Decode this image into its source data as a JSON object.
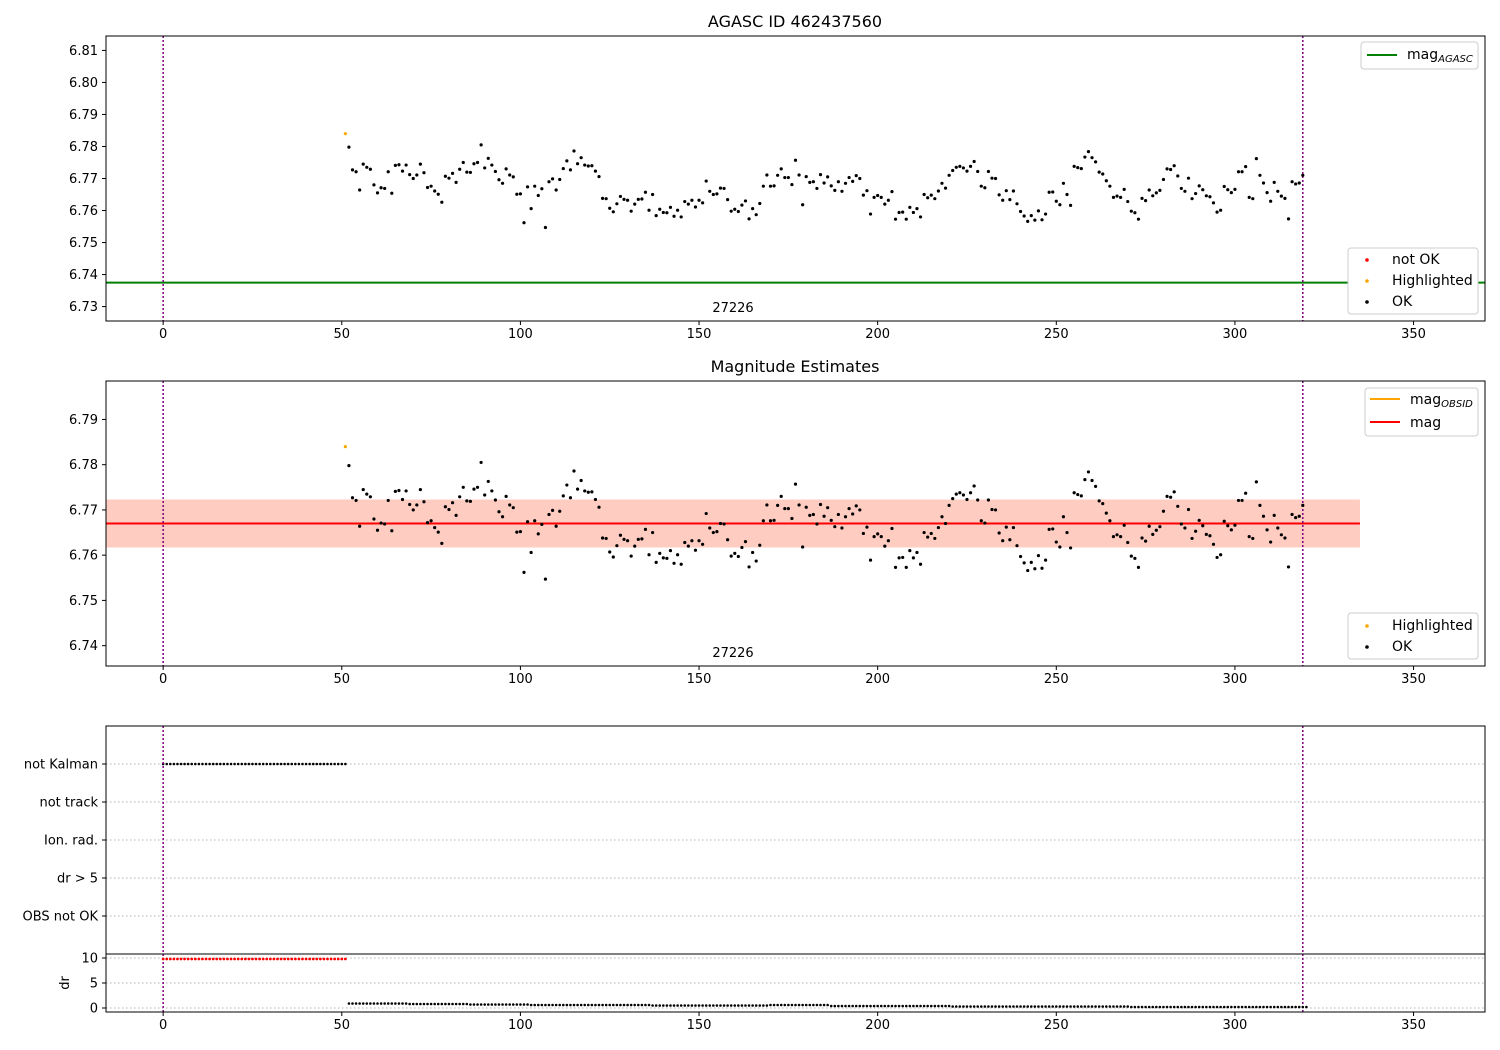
{
  "page": {
    "background": "#ffffff"
  },
  "chart_data": [
    {
      "type": "scatter",
      "title": "AGASC ID 462437560",
      "xlabel": "",
      "ylabel": "",
      "xlim": [
        -16,
        370
      ],
      "ylim": [
        6.7255,
        6.8145
      ],
      "x_ticks": [
        0,
        50,
        100,
        150,
        200,
        250,
        300,
        350
      ],
      "y_ticks": [
        6.73,
        6.74,
        6.75,
        6.76,
        6.77,
        6.78,
        6.79,
        6.8,
        6.81
      ],
      "vlines": [
        0,
        319
      ],
      "vline_color": "#800080",
      "annotation": "27226",
      "hlines": [
        {
          "name": "mag_AGASC",
          "y": 6.7375,
          "color": "#008000"
        }
      ],
      "legend_lines": [
        {
          "name": "mag",
          "sub": "AGASC",
          "color": "#008000"
        }
      ],
      "legend_points": [
        {
          "name": "not OK",
          "color": "#ff0000"
        },
        {
          "name": "Highlighted",
          "color": "#ffa500"
        },
        {
          "name": "OK",
          "color": "#000000"
        }
      ],
      "series": [
        {
          "name": "Highlighted",
          "color": "#ffa500",
          "x": [
            51
          ],
          "y": [
            6.784
          ]
        },
        {
          "name": "OK",
          "color": "#000000",
          "ref": "mag_points"
        }
      ]
    },
    {
      "type": "scatter",
      "title": "Magnitude Estimates",
      "xlabel": "",
      "ylabel": "",
      "xlim": [
        -16,
        370
      ],
      "ylim": [
        6.7355,
        6.7985
      ],
      "x_ticks": [
        0,
        50,
        100,
        150,
        200,
        250,
        300,
        350
      ],
      "y_ticks": [
        6.74,
        6.75,
        6.76,
        6.77,
        6.78,
        6.79
      ],
      "vlines": [
        0,
        319
      ],
      "vline_color": "#800080",
      "annotation": "27226",
      "bands": [
        {
          "x": [
            -16,
            335
          ],
          "y": [
            6.7617,
            6.7723
          ],
          "color": "#ffc0cb",
          "opacity": 0.45
        },
        {
          "x": [
            -16,
            335
          ],
          "y": [
            6.7617,
            6.7723
          ],
          "color": "#ffa07a",
          "opacity": 0.35
        }
      ],
      "hlines": [
        {
          "name": "mag_OBSID",
          "y": 6.767,
          "x": [
            -16,
            335
          ],
          "color": "#ffa500"
        },
        {
          "name": "mag",
          "y": 6.767,
          "x": [
            -16,
            335
          ],
          "color": "#ff0000"
        }
      ],
      "legend_lines": [
        {
          "name": "mag",
          "sub": "OBSID",
          "color": "#ffa500"
        },
        {
          "name": "mag",
          "sub": "",
          "color": "#ff0000"
        }
      ],
      "legend_points": [
        {
          "name": "Highlighted",
          "color": "#ffa500"
        },
        {
          "name": "OK",
          "color": "#000000"
        }
      ],
      "series": [
        {
          "name": "Highlighted",
          "color": "#ffa500",
          "x": [
            51
          ],
          "y": [
            6.784
          ]
        },
        {
          "name": "OK",
          "color": "#000000",
          "ref": "mag_points"
        }
      ]
    },
    {
      "type": "scatter",
      "title": "",
      "xlabel": "",
      "ylabel": "",
      "xlim": [
        -16,
        370
      ],
      "categories": [
        "not Kalman",
        "not track",
        "Ion. rad.",
        "dr > 5",
        "OBS not OK"
      ],
      "flag_x": [
        0,
        51
      ],
      "flag_category": "not Kalman",
      "vlines": [
        0,
        319
      ],
      "vline_color": "#800080"
    },
    {
      "type": "scatter",
      "title": "",
      "xlabel": "",
      "ylabel": "dr",
      "xlim": [
        -16,
        370
      ],
      "ylim": [
        -0.8,
        10.8
      ],
      "x_ticks": [
        0,
        50,
        100,
        150,
        200,
        250,
        300,
        350
      ],
      "y_ticks": [
        0,
        5,
        10
      ],
      "vlines": [
        0,
        319
      ],
      "vline_color": "#800080",
      "series": [
        {
          "name": "not OK",
          "color": "#ff0000",
          "x_range": [
            0,
            51
          ],
          "y": 9.8
        },
        {
          "name": "OK",
          "color": "#000000",
          "x_range": [
            52,
            320
          ],
          "y_values": [
            0.9,
            0.8,
            0.7,
            0.6,
            0.6,
            0.5,
            0.5,
            0.6,
            0.4,
            0.4,
            0.3,
            0.3,
            0.3,
            0.2,
            0.2,
            0.2
          ]
        }
      ]
    }
  ],
  "mag_points": {
    "x": [
      52,
      53,
      54,
      55,
      56,
      57,
      58,
      59,
      60,
      61,
      62,
      63,
      64,
      65,
      66,
      67,
      68,
      69,
      70,
      71,
      72,
      73,
      74,
      75,
      76,
      77,
      78,
      79,
      80,
      81,
      82,
      83,
      84,
      85,
      86,
      87,
      88,
      89,
      90,
      91,
      92,
      93,
      94,
      95,
      96,
      97,
      98,
      99,
      100,
      101,
      102,
      103,
      104,
      105,
      106,
      107,
      108,
      109,
      110,
      111,
      112,
      113,
      114,
      115,
      116,
      117,
      118,
      119,
      120,
      121,
      122,
      123,
      124,
      125,
      126,
      127,
      128,
      129,
      130,
      131,
      132,
      133,
      134,
      135,
      136,
      137,
      138,
      139,
      140,
      141,
      142,
      143,
      144,
      145,
      146,
      147,
      148,
      149,
      150,
      151,
      152,
      153,
      154,
      155,
      156,
      157,
      158,
      159,
      160,
      161,
      162,
      163,
      164,
      165,
      166,
      167,
      168,
      169,
      170,
      171,
      172,
      173,
      174,
      175,
      176,
      177,
      178,
      179,
      180,
      181,
      182,
      183,
      184,
      185,
      186,
      187,
      188,
      189,
      190,
      191,
      192,
      193,
      194,
      195,
      196,
      197,
      198,
      199,
      200,
      201,
      202,
      203,
      204,
      205,
      206,
      207,
      208,
      209,
      210,
      211,
      212,
      213,
      214,
      215,
      216,
      217,
      218,
      219,
      220,
      221,
      222,
      223,
      224,
      225,
      226,
      227,
      228,
      229,
      230,
      231,
      232,
      233,
      234,
      235,
      236,
      237,
      238,
      239,
      240,
      241,
      242,
      243,
      244,
      245,
      246,
      247,
      248,
      249,
      250,
      251,
      252,
      253,
      254,
      255,
      256,
      257,
      258,
      259,
      260,
      261,
      262,
      263,
      264,
      265,
      266,
      267,
      268,
      269,
      270,
      271,
      272,
      273,
      274,
      275,
      276,
      277,
      278,
      279,
      280,
      281,
      282,
      283,
      284,
      285,
      286,
      287,
      288,
      289,
      290,
      291,
      292,
      293,
      294,
      295,
      296,
      297,
      298,
      299,
      300,
      301,
      302,
      303,
      304,
      305,
      306,
      307,
      308,
      309,
      310,
      311,
      312,
      313,
      314,
      315,
      316,
      317,
      318,
      319
    ],
    "y": [
      6.7798,
      6.7727,
      6.7721,
      6.7664,
      6.7745,
      6.7735,
      6.7729,
      6.768,
      6.7655,
      6.7671,
      6.7669,
      6.7721,
      6.7654,
      6.7741,
      6.7743,
      6.7723,
      6.7742,
      6.7712,
      6.77,
      6.7711,
      6.7745,
      6.7718,
      6.7672,
      6.7676,
      6.7661,
      6.7651,
      6.7626,
      6.7707,
      6.7701,
      6.7716,
      6.7688,
      6.7729,
      6.775,
      6.772,
      6.7719,
      6.7746,
      6.775,
      6.7805,
      6.7733,
      6.7763,
      6.7742,
      6.7722,
      6.7696,
      6.7685,
      6.773,
      6.7711,
      6.7705,
      6.7651,
      6.7652,
      6.7562,
      6.7674,
      6.7606,
      6.7676,
      6.7647,
      6.7668,
      6.7547,
      6.769,
      6.7699,
      6.7664,
      6.7697,
      6.7731,
      6.7755,
      6.7727,
      6.7786,
      6.7746,
      6.7765,
      6.7742,
      6.7739,
      6.774,
      6.7723,
      6.7706,
      6.7638,
      6.7637,
      6.7607,
      6.7596,
      6.7621,
      6.7644,
      6.7635,
      6.7632,
      6.7598,
      6.762,
      6.7635,
      6.7636,
      6.7657,
      6.7601,
      6.765,
      6.7584,
      6.7604,
      6.7594,
      6.7593,
      6.761,
      6.7582,
      6.7601,
      6.758,
      6.7628,
      6.762,
      6.7632,
      6.7611,
      6.7632,
      6.7624,
      6.7692,
      6.766,
      6.765,
      6.7652,
      6.767,
      6.7669,
      6.7634,
      6.7598,
      6.7604,
      6.7597,
      6.7617,
      6.763,
      6.7574,
      6.7606,
      6.7587,
      6.7622,
      6.7676,
      6.7711,
      6.7676,
      6.7677,
      6.771,
      6.773,
      6.7703,
      6.7703,
      6.7681,
      6.7757,
      6.7711,
      6.7618,
      6.7706,
      6.7688,
      6.769,
      6.7669,
      6.7712,
      6.7686,
      6.7705,
      6.7677,
      6.7663,
      6.769,
      6.766,
      6.7685,
      6.7703,
      6.7691,
      6.7709,
      6.77,
      6.7648,
      6.7662,
      6.7589,
      6.7641,
      6.7647,
      6.7641,
      6.762,
      6.7632,
      6.7659,
      6.7573,
      6.7594,
      6.7595,
      6.7573,
      6.761,
      6.7594,
      6.7606,
      6.758,
      6.765,
      6.764,
      6.7648,
      6.7637,
      6.7661,
      6.7685,
      6.767,
      6.771,
      6.7725,
      6.7735,
      6.7738,
      6.7733,
      6.7723,
      6.7738,
      6.7753,
      6.7722,
      6.7676,
      6.7671,
      6.7722,
      6.7701,
      6.77,
      6.7649,
      6.7632,
      6.7662,
      6.7634,
      6.7661,
      6.7621,
      6.7597,
      6.7583,
      6.7566,
      6.7584,
      6.757,
      6.7599,
      6.7571,
      6.7589,
      6.7657,
      6.7658,
      6.7629,
      6.7618,
      6.7685,
      6.765,
      6.7616,
      6.7738,
      6.7734,
      6.7731,
      6.7767,
      6.7784,
      6.7765,
      6.7752,
      6.772,
      6.7714,
      6.7693,
      6.7676,
      6.7641,
      6.7645,
      6.7641,
      6.7666,
      6.7628,
      6.7598,
      6.7593,
      6.7573,
      6.7638,
      6.7631,
      6.7664,
      6.7646,
      6.7655,
      6.7663,
      6.7697,
      6.773,
      6.7728,
      6.774,
      6.7708,
      6.7669,
      6.766,
      6.7701,
      6.7637,
      6.7653,
      6.7677,
      6.7665,
      6.7646,
      6.7643,
      6.7624,
      6.7595,
      6.7601,
      6.7675,
      6.7665,
      6.7656,
      6.7666,
      6.7721,
      6.7721,
      6.7737,
      6.7641,
      6.7637,
      6.7762,
      6.771,
      6.7686,
      6.7656,
      6.7629,
      6.7688,
      6.766,
      6.7645,
      6.7638,
      6.7574,
      6.769,
      6.7683,
      6.7686,
      6.771
    ]
  }
}
